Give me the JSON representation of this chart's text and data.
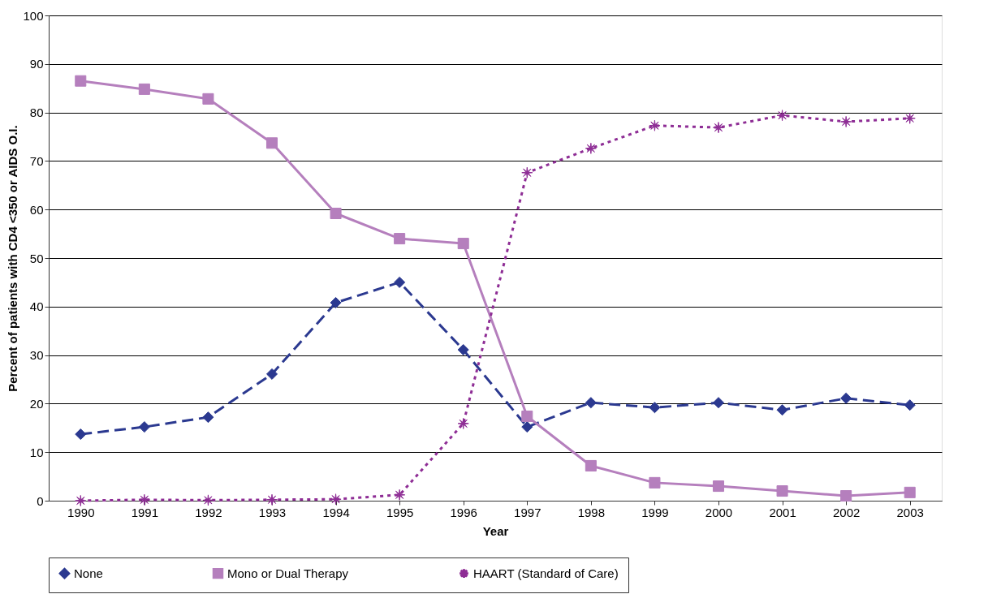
{
  "chart_data": {
    "type": "line",
    "xlabel": "Year",
    "ylabel": "Percent of patients with CD4 <350 or AIDS O.I.",
    "categories": [
      "1990",
      "1991",
      "1992",
      "1993",
      "1994",
      "1995",
      "1996",
      "1997",
      "1998",
      "1999",
      "2000",
      "2001",
      "2002",
      "2003"
    ],
    "ylim": [
      0,
      100
    ],
    "yticks": [
      0,
      10,
      20,
      30,
      40,
      50,
      60,
      70,
      80,
      90,
      100
    ],
    "grid": "y",
    "legend": "bottom",
    "series": [
      {
        "name": "None",
        "color": "#2b3990",
        "marker": "diamond",
        "line_style": "dashed",
        "values": [
          13.7,
          15.2,
          17.2,
          26.1,
          40.8,
          45.0,
          31.1,
          15.2,
          20.2,
          19.2,
          20.2,
          18.7,
          21.1,
          19.7
        ]
      },
      {
        "name": "Mono or Dual Therapy",
        "color": "#b57fbd",
        "marker": "square",
        "line_style": "solid",
        "values": [
          86.5,
          84.8,
          82.8,
          73.7,
          59.2,
          54.0,
          53.0,
          17.4,
          7.2,
          3.7,
          3.0,
          2.0,
          1.0,
          1.7
        ]
      },
      {
        "name": "HAART (Standard of Care)",
        "color": "#8e2d95",
        "marker": "star",
        "line_style": "dotted",
        "values": [
          0.0,
          0.2,
          0.1,
          0.2,
          0.3,
          1.2,
          15.9,
          67.6,
          72.6,
          77.3,
          76.9,
          79.4,
          78.1,
          78.8
        ]
      }
    ]
  }
}
